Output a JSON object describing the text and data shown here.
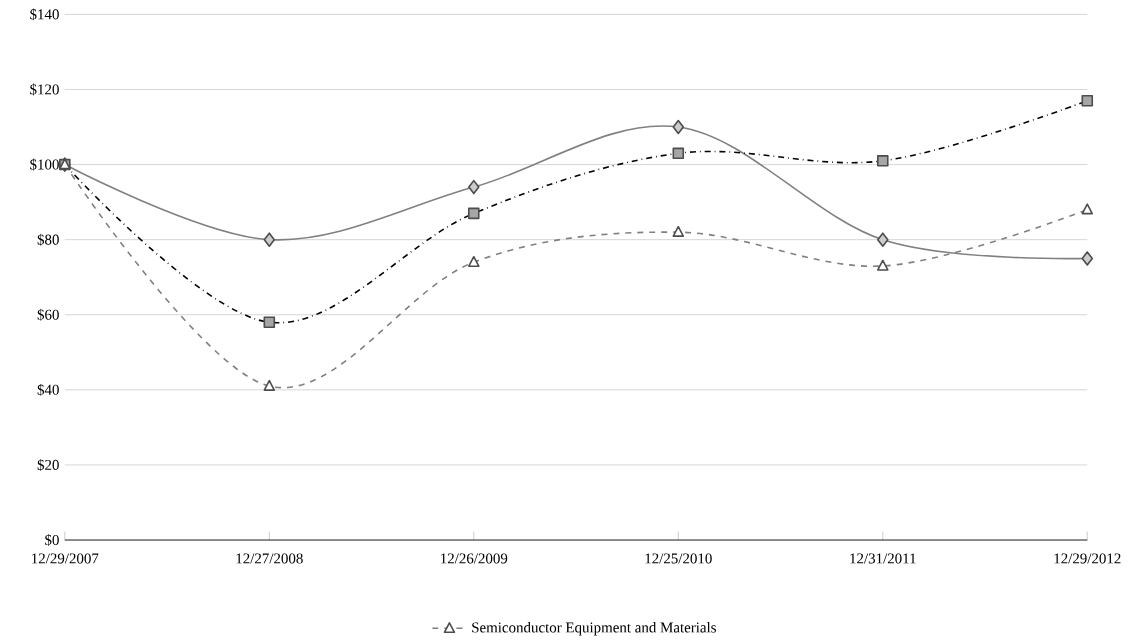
{
  "chart_data": {
    "type": "line",
    "categories": [
      "12/29/2007",
      "12/27/2008",
      "12/26/2009",
      "12/25/2010",
      "12/31/2011",
      "12/29/2012"
    ],
    "series": [
      {
        "color": "#808080",
        "marker": "diamond",
        "line_style": "solid",
        "values": [
          100,
          80,
          94,
          110,
          80,
          75
        ]
      },
      {
        "color": "#000000",
        "marker": "square",
        "line_style": "dashdot",
        "values": [
          100,
          58,
          87,
          103,
          101,
          117
        ]
      },
      {
        "name": "Semiconductor Equipment and Materials",
        "color": "#808080",
        "marker": "triangle",
        "line_style": "dashed",
        "values": [
          100,
          41,
          74,
          82,
          73,
          88
        ]
      }
    ],
    "ylim": [
      0,
      140
    ],
    "yticks": [
      {
        "value": 0,
        "label": "$0"
      },
      {
        "value": 20,
        "label": "$20"
      },
      {
        "value": 40,
        "label": "$40"
      },
      {
        "value": 60,
        "label": "$60"
      },
      {
        "value": 80,
        "label": "$80"
      },
      {
        "value": 100,
        "label": "$100"
      },
      {
        "value": 120,
        "label": "$120"
      },
      {
        "value": 140,
        "label": "$140"
      }
    ],
    "grid": "y",
    "legend": "bottom"
  }
}
